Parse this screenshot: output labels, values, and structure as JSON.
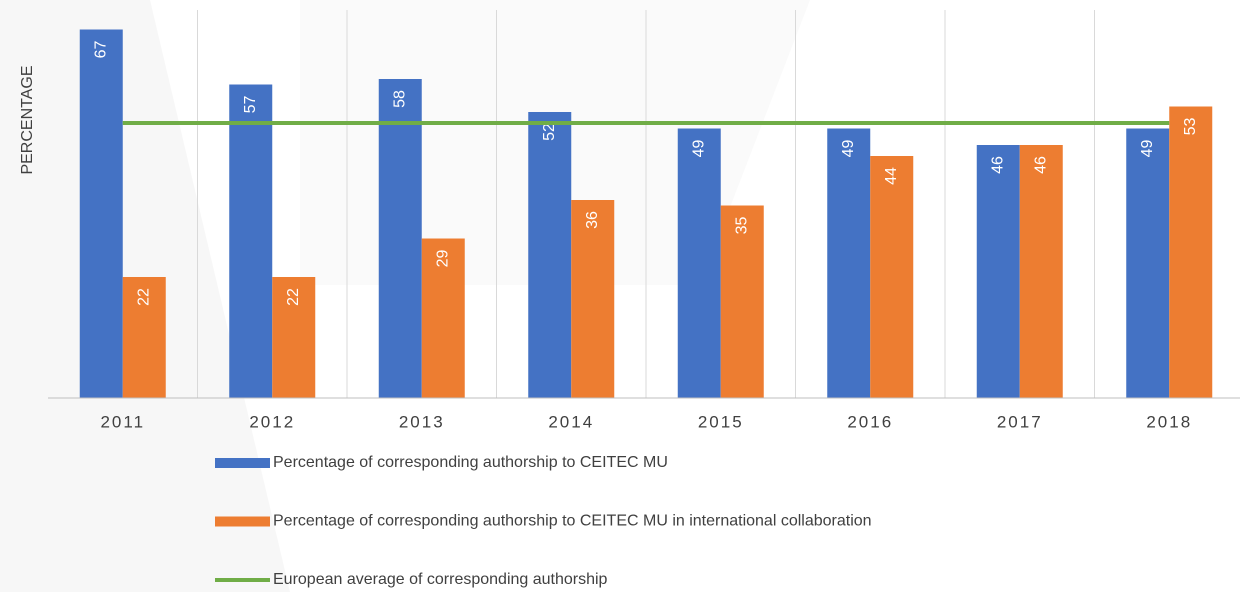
{
  "chart_data": {
    "type": "bar",
    "y_label": "PERCENTAGE",
    "categories": [
      "2011",
      "2012",
      "2013",
      "2014",
      "2015",
      "2016",
      "2017",
      "2018"
    ],
    "series": [
      {
        "name": "Percentage of corresponding authorship to CEITEC MU",
        "color": "#4472c4",
        "values": [
          67,
          57,
          58,
          52,
          49,
          49,
          46,
          49
        ]
      },
      {
        "name": "Percentage of corresponding authorship to CEITEC MU in international collaboration",
        "color": "#ed7d31",
        "values": [
          22,
          22,
          29,
          36,
          35,
          44,
          46,
          53
        ]
      },
      {
        "name": "European average of corresponding authorship",
        "color": "#70ad47",
        "type": "line",
        "values": [
          50,
          50,
          50,
          50,
          50,
          50,
          50,
          50
        ]
      }
    ],
    "ylim": [
      0,
      72
    ],
    "grid": true
  }
}
